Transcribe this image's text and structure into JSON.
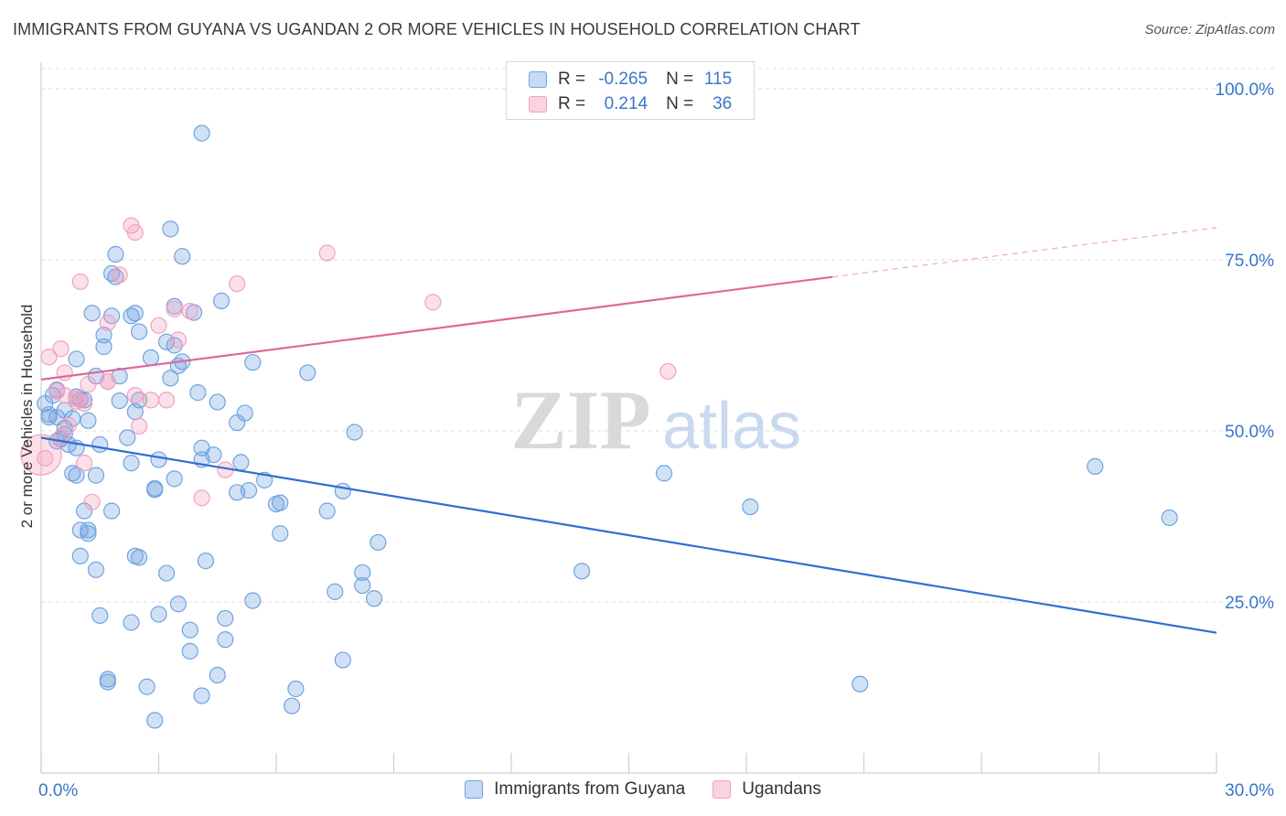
{
  "title": "IMMIGRANTS FROM GUYANA VS UGANDAN 2 OR MORE VEHICLES IN HOUSEHOLD CORRELATION CHART",
  "source": "Source: ZipAtlas.com",
  "watermark": {
    "zip": "ZIP",
    "atlas": "atlas"
  },
  "legend": {
    "rows": [
      {
        "r_label": "R =",
        "r_value": "-0.265",
        "n_label": "N =",
        "n_value": "115"
      },
      {
        "r_label": "R =",
        "r_value": "0.214",
        "n_label": "N =",
        "n_value": "36"
      }
    ]
  },
  "bottom_legend": [
    "Immigrants from Guyana",
    "Ugandans"
  ],
  "chart_data": {
    "type": "scatter",
    "xlabel": "",
    "ylabel": "2 or more Vehicles in Household",
    "xlim": [
      0,
      30
    ],
    "ylim": [
      0,
      100
    ],
    "x_tick_labels": [
      "0.0%",
      "30.0%"
    ],
    "y_tick_labels": [
      "25.0%",
      "50.0%",
      "75.0%",
      "100.0%"
    ],
    "y_ticks": [
      25,
      50,
      75,
      100
    ],
    "grid": "horizontal dashed",
    "legend_position": "top-center",
    "colors": {
      "guyana": "#6fa3e0",
      "guyana_line": "#2f6fd0",
      "ugandans": "#f4a0bd",
      "ugandans_line": "#e0689a"
    },
    "series": [
      {
        "name": "Immigrants from Guyana",
        "r": -0.265,
        "n": 115,
        "trend": {
          "x": [
            0,
            30
          ],
          "y": [
            49,
            20.5
          ]
        },
        "points": [
          [
            4.1,
            93.5
          ],
          [
            3.3,
            79.5
          ],
          [
            1.9,
            75.8
          ],
          [
            3.6,
            75.5
          ],
          [
            1.9,
            72.5
          ],
          [
            3.4,
            68.2
          ],
          [
            3.9,
            67.3
          ],
          [
            4.6,
            69.0
          ],
          [
            1.3,
            67.2
          ],
          [
            1.8,
            66.8
          ],
          [
            2.4,
            67.2
          ],
          [
            1.6,
            64.0
          ],
          [
            2.5,
            64.5
          ],
          [
            1.6,
            62.3
          ],
          [
            3.2,
            63.0
          ],
          [
            3.4,
            62.5
          ],
          [
            0.9,
            60.5
          ],
          [
            2.8,
            60.7
          ],
          [
            3.5,
            59.5
          ],
          [
            5.4,
            60.0
          ],
          [
            6.8,
            58.5
          ],
          [
            1.4,
            58.0
          ],
          [
            2.0,
            58.0
          ],
          [
            3.3,
            57.7
          ],
          [
            4.0,
            55.6
          ],
          [
            0.4,
            56.0
          ],
          [
            0.9,
            55.0
          ],
          [
            1.1,
            54.5
          ],
          [
            0.1,
            54.0
          ],
          [
            0.2,
            52.0
          ],
          [
            0.6,
            53.0
          ],
          [
            2.0,
            54.4
          ],
          [
            2.5,
            54.5
          ],
          [
            4.5,
            54.2
          ],
          [
            2.4,
            52.8
          ],
          [
            0.4,
            52.0
          ],
          [
            0.8,
            51.8
          ],
          [
            1.2,
            51.5
          ],
          [
            5.0,
            51.2
          ],
          [
            0.6,
            49.5
          ],
          [
            0.5,
            48.8
          ],
          [
            0.7,
            48.0
          ],
          [
            2.2,
            49.0
          ],
          [
            1.5,
            48.0
          ],
          [
            4.1,
            47.5
          ],
          [
            0.9,
            47.5
          ],
          [
            4.1,
            45.8
          ],
          [
            4.4,
            46.5
          ],
          [
            3.0,
            45.8
          ],
          [
            2.3,
            45.3
          ],
          [
            5.1,
            45.4
          ],
          [
            0.8,
            43.8
          ],
          [
            0.9,
            43.5
          ],
          [
            1.4,
            43.5
          ],
          [
            3.4,
            43.0
          ],
          [
            5.7,
            42.8
          ],
          [
            2.9,
            41.4
          ],
          [
            2.9,
            41.6
          ],
          [
            5.0,
            41.0
          ],
          [
            5.3,
            41.3
          ],
          [
            7.7,
            41.2
          ],
          [
            6.0,
            39.3
          ],
          [
            6.1,
            39.5
          ],
          [
            1.1,
            38.3
          ],
          [
            1.8,
            38.3
          ],
          [
            7.3,
            38.3
          ],
          [
            6.1,
            35.0
          ],
          [
            1.0,
            35.5
          ],
          [
            1.2,
            35.0
          ],
          [
            1.2,
            35.5
          ],
          [
            8.6,
            33.7
          ],
          [
            1.0,
            31.7
          ],
          [
            2.4,
            31.7
          ],
          [
            4.2,
            31.0
          ],
          [
            1.4,
            29.7
          ],
          [
            3.2,
            29.2
          ],
          [
            8.2,
            29.3
          ],
          [
            13.8,
            29.5
          ],
          [
            8.2,
            27.4
          ],
          [
            7.5,
            26.5
          ],
          [
            8.5,
            25.5
          ],
          [
            5.4,
            25.2
          ],
          [
            3.5,
            24.7
          ],
          [
            1.5,
            23.0
          ],
          [
            3.0,
            23.2
          ],
          [
            4.7,
            22.6
          ],
          [
            2.3,
            22.0
          ],
          [
            3.8,
            20.9
          ],
          [
            4.7,
            19.5
          ],
          [
            3.8,
            17.8
          ],
          [
            7.7,
            16.5
          ],
          [
            1.7,
            13.7
          ],
          [
            1.7,
            13.3
          ],
          [
            4.5,
            14.3
          ],
          [
            2.7,
            12.6
          ],
          [
            6.5,
            12.3
          ],
          [
            4.1,
            11.3
          ],
          [
            6.4,
            9.8
          ],
          [
            2.9,
            7.7
          ],
          [
            15.9,
            43.8
          ],
          [
            18.1,
            38.9
          ],
          [
            26.9,
            44.8
          ],
          [
            28.8,
            37.3
          ],
          [
            20.9,
            13.0
          ],
          [
            8.0,
            49.8
          ],
          [
            0.2,
            52.4
          ],
          [
            1.0,
            54.6
          ],
          [
            0.3,
            55.2
          ],
          [
            0.6,
            50.4
          ],
          [
            2.3,
            66.8
          ],
          [
            3.6,
            60.1
          ],
          [
            1.8,
            73.0
          ],
          [
            5.2,
            52.6
          ],
          [
            0.4,
            48.5
          ],
          [
            2.5,
            31.5
          ]
        ]
      },
      {
        "name": "Ugandans",
        "r": 0.214,
        "n": 36,
        "trend": {
          "x": [
            0,
            20.2
          ],
          "y": [
            57.5,
            72.5
          ],
          "dashed_extension": {
            "x": [
              20.2,
              30
            ],
            "y": [
              72.5,
              79.7
            ]
          }
        },
        "points": [
          [
            0.0,
            46.5
          ],
          [
            2.3,
            80.0
          ],
          [
            2.4,
            79.0
          ],
          [
            7.3,
            76.0
          ],
          [
            2.0,
            72.8
          ],
          [
            1.0,
            71.8
          ],
          [
            5.0,
            71.5
          ],
          [
            10.0,
            68.8
          ],
          [
            3.4,
            67.8
          ],
          [
            3.8,
            67.5
          ],
          [
            3.0,
            65.4
          ],
          [
            1.7,
            65.8
          ],
          [
            3.5,
            63.3
          ],
          [
            0.5,
            62.0
          ],
          [
            0.2,
            60.8
          ],
          [
            0.6,
            58.5
          ],
          [
            16.0,
            58.7
          ],
          [
            1.7,
            57.2
          ],
          [
            1.2,
            56.8
          ],
          [
            0.4,
            55.8
          ],
          [
            0.6,
            55.2
          ],
          [
            0.9,
            54.7
          ],
          [
            0.9,
            54.3
          ],
          [
            1.1,
            54.0
          ],
          [
            2.8,
            54.5
          ],
          [
            3.2,
            54.5
          ],
          [
            1.7,
            57.2
          ],
          [
            2.5,
            50.7
          ],
          [
            0.7,
            50.8
          ],
          [
            0.5,
            49.0
          ],
          [
            1.1,
            45.3
          ],
          [
            4.7,
            44.3
          ],
          [
            4.1,
            40.2
          ],
          [
            1.3,
            39.6
          ],
          [
            0.1,
            46.0
          ],
          [
            2.4,
            55.2
          ]
        ]
      }
    ]
  }
}
